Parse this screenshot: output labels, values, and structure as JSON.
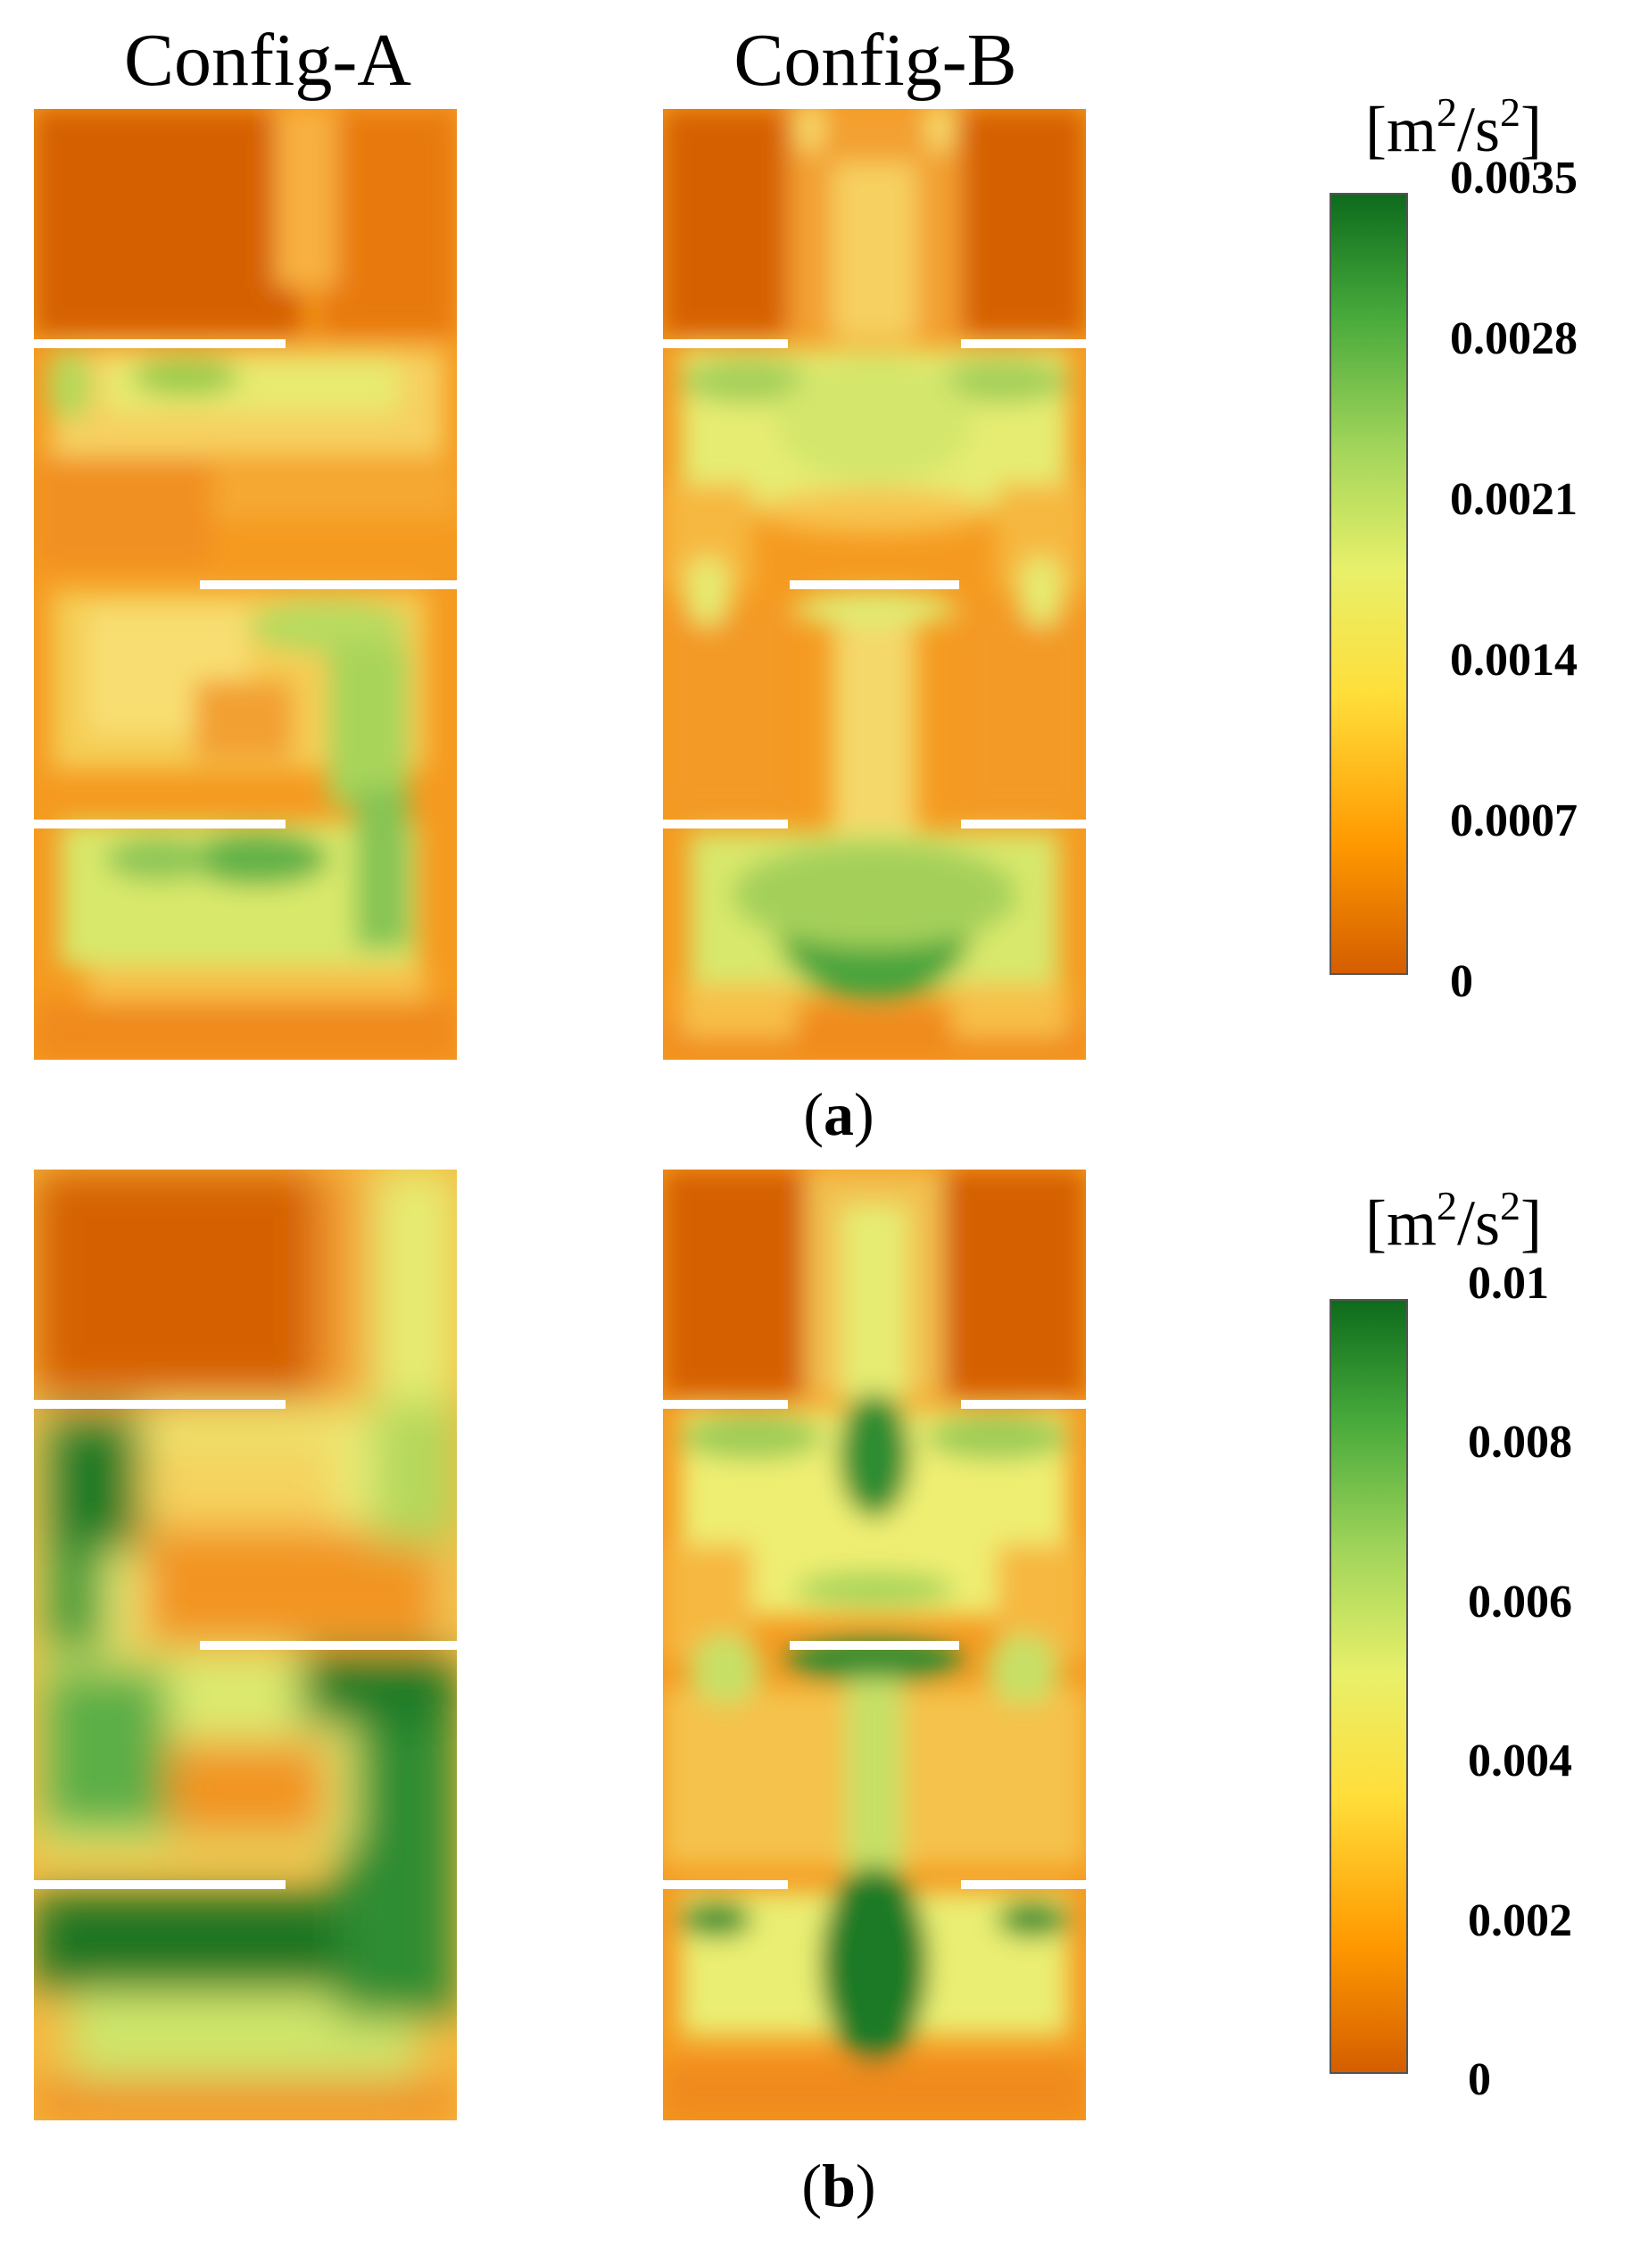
{
  "column_titles": {
    "a": "Config-A",
    "b": "Config-B"
  },
  "panels": [
    {
      "label_open": "(",
      "label_letter": "a",
      "label_close": ")",
      "unit_base": "[m",
      "unit_sup1": "2",
      "unit_mid": "/s",
      "unit_sup2": "2",
      "unit_end": "]"
    },
    {
      "label_open": "(",
      "label_letter": "b",
      "label_close": ")",
      "unit_base": "[m",
      "unit_sup1": "2",
      "unit_mid": "/s",
      "unit_sup2": "2",
      "unit_end": "]"
    }
  ],
  "chart_data": [
    {
      "type": "heatmap",
      "panel": "(a)",
      "columns": [
        "Config-A",
        "Config-B"
      ],
      "colorbar": {
        "unit": "[m2/s2]",
        "min": 0,
        "max": 0.0035,
        "ticks": [
          "0.0035",
          "0.0028",
          "0.0021",
          "0.0014",
          "0.0007",
          "0"
        ],
        "colors": [
          "#d35c00",
          "#ff9900",
          "#ffde3a",
          "#e8f06a",
          "#a0d45a",
          "#45a83a",
          "#0d6b1c"
        ]
      }
    },
    {
      "type": "heatmap",
      "panel": "(b)",
      "columns": [
        "Config-A",
        "Config-B"
      ],
      "colorbar": {
        "unit": "[m2/s2]",
        "min": 0,
        "max": 0.01,
        "ticks": [
          "0.01",
          "0.008",
          "0.006",
          "0.004",
          "0.002",
          "0"
        ],
        "colors": [
          "#d35c00",
          "#ff9900",
          "#ffde3a",
          "#e8f06a",
          "#a0d45a",
          "#45a83a",
          "#0d6b1c"
        ]
      }
    }
  ]
}
